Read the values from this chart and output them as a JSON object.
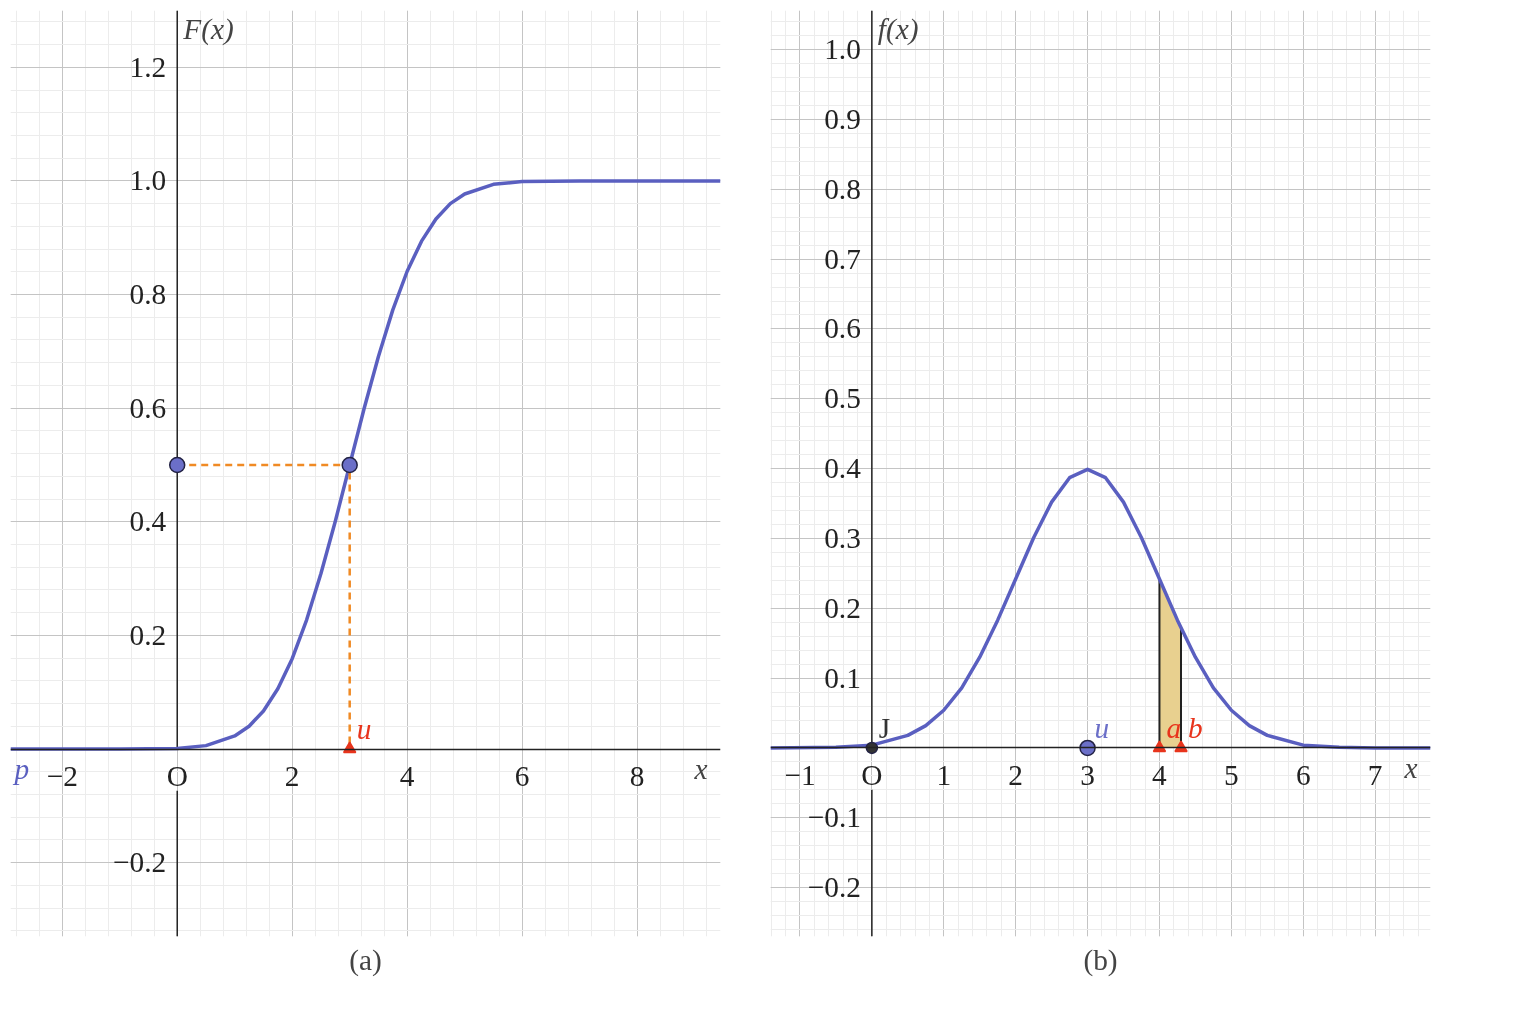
{
  "chart_data": [
    {
      "type": "line",
      "title": "(a)",
      "xlabel": "x",
      "ylabel": "F(x)",
      "xlim": [
        -2.9,
        9.45
      ],
      "ylim": [
        -0.33,
        1.3
      ],
      "xticks": [
        {
          "value": -2,
          "label": "−2"
        },
        {
          "value": 0,
          "label": "O"
        },
        2,
        4,
        6,
        8
      ],
      "yticks": [
        {
          "value": -0.2,
          "label": "−0.2"
        },
        0.2,
        0.4,
        0.6,
        0.8,
        {
          "value": 1.0,
          "label": "1.0"
        },
        1.2
      ],
      "grid": true,
      "series": [
        {
          "color": "#5a5fc0",
          "x": [
            -2.9,
            -1,
            0,
            0.5,
            1,
            1.25,
            1.5,
            1.75,
            2,
            2.25,
            2.5,
            2.75,
            3,
            3.25,
            3.5,
            3.75,
            4,
            4.25,
            4.5,
            4.75,
            5,
            5.5,
            6,
            7,
            9.45
          ],
          "values": [
            0,
            0,
            0.001,
            0.006,
            0.023,
            0.04,
            0.067,
            0.106,
            0.159,
            0.227,
            0.309,
            0.401,
            0.5,
            0.599,
            0.691,
            0.773,
            0.841,
            0.894,
            0.933,
            0.96,
            0.977,
            0.994,
            0.999,
            1,
            1
          ]
        },
        {
          "type": "line",
          "color": "#f08a24",
          "line_style": "dashed",
          "x": [
            0,
            3,
            3
          ],
          "values": [
            0.5,
            0.5,
            0
          ]
        },
        {
          "type": "scatter",
          "color": "#6b6fc8",
          "marker": "circle",
          "x": [
            0,
            3
          ],
          "values": [
            0.5,
            0.5
          ]
        },
        {
          "type": "scatter",
          "name": "u",
          "color": "#e8341c",
          "marker": "triangle",
          "x": [
            3
          ],
          "values": [
            0
          ]
        }
      ],
      "annotations": [
        "p"
      ]
    },
    {
      "type": "line",
      "title": "(b)",
      "xlabel": "x",
      "ylabel": "f(x)",
      "xlim": [
        -1.41,
        7.77
      ],
      "ylim": [
        -0.27,
        1.056
      ],
      "xticks": [
        {
          "value": -1,
          "label": "−1"
        },
        {
          "value": 0,
          "label": "O"
        },
        1,
        2,
        3,
        4,
        5,
        6,
        7
      ],
      "yticks": [
        {
          "value": -0.2,
          "label": "−0.2"
        },
        {
          "value": -0.1,
          "label": "−0.1"
        },
        0.1,
        0.2,
        0.3,
        0.4,
        0.5,
        0.6,
        0.7,
        0.8,
        0.9,
        {
          "value": 1.0,
          "label": "1.0"
        }
      ],
      "grid": true,
      "series": [
        {
          "type": "area",
          "color": "#e8d08f",
          "x": [
            4,
            4.15,
            4.3
          ],
          "values": [
            0.242,
            0.206,
            0.171
          ]
        },
        {
          "color": "#5a5fc0",
          "x": [
            -1.41,
            -0.5,
            0,
            0.5,
            0.75,
            1,
            1.25,
            1.5,
            1.75,
            2,
            2.25,
            2.5,
            2.75,
            3,
            3.25,
            3.5,
            3.75,
            4,
            4.25,
            4.5,
            4.75,
            5,
            5.25,
            5.5,
            6,
            6.5,
            7,
            7.77
          ],
          "values": [
            0,
            0.001,
            0.004,
            0.018,
            0.032,
            0.054,
            0.086,
            0.13,
            0.183,
            0.242,
            0.301,
            0.352,
            0.387,
            0.399,
            0.387,
            0.352,
            0.301,
            0.242,
            0.183,
            0.13,
            0.086,
            0.054,
            0.032,
            0.018,
            0.004,
            0.001,
            0,
            0
          ]
        },
        {
          "type": "scatter",
          "name": "J",
          "color": "#333333",
          "marker": "circle",
          "x": [
            0
          ],
          "values": [
            0
          ]
        },
        {
          "type": "scatter",
          "name": "u",
          "color": "#6b6fc8",
          "marker": "circle",
          "x": [
            3
          ],
          "values": [
            0
          ]
        },
        {
          "type": "scatter",
          "name": "a",
          "color": "#e8341c",
          "marker": "triangle",
          "x": [
            4
          ],
          "values": [
            0
          ]
        },
        {
          "type": "scatter",
          "name": "b",
          "color": "#e8341c",
          "marker": "triangle",
          "x": [
            4.3
          ],
          "values": [
            0
          ]
        }
      ]
    }
  ]
}
